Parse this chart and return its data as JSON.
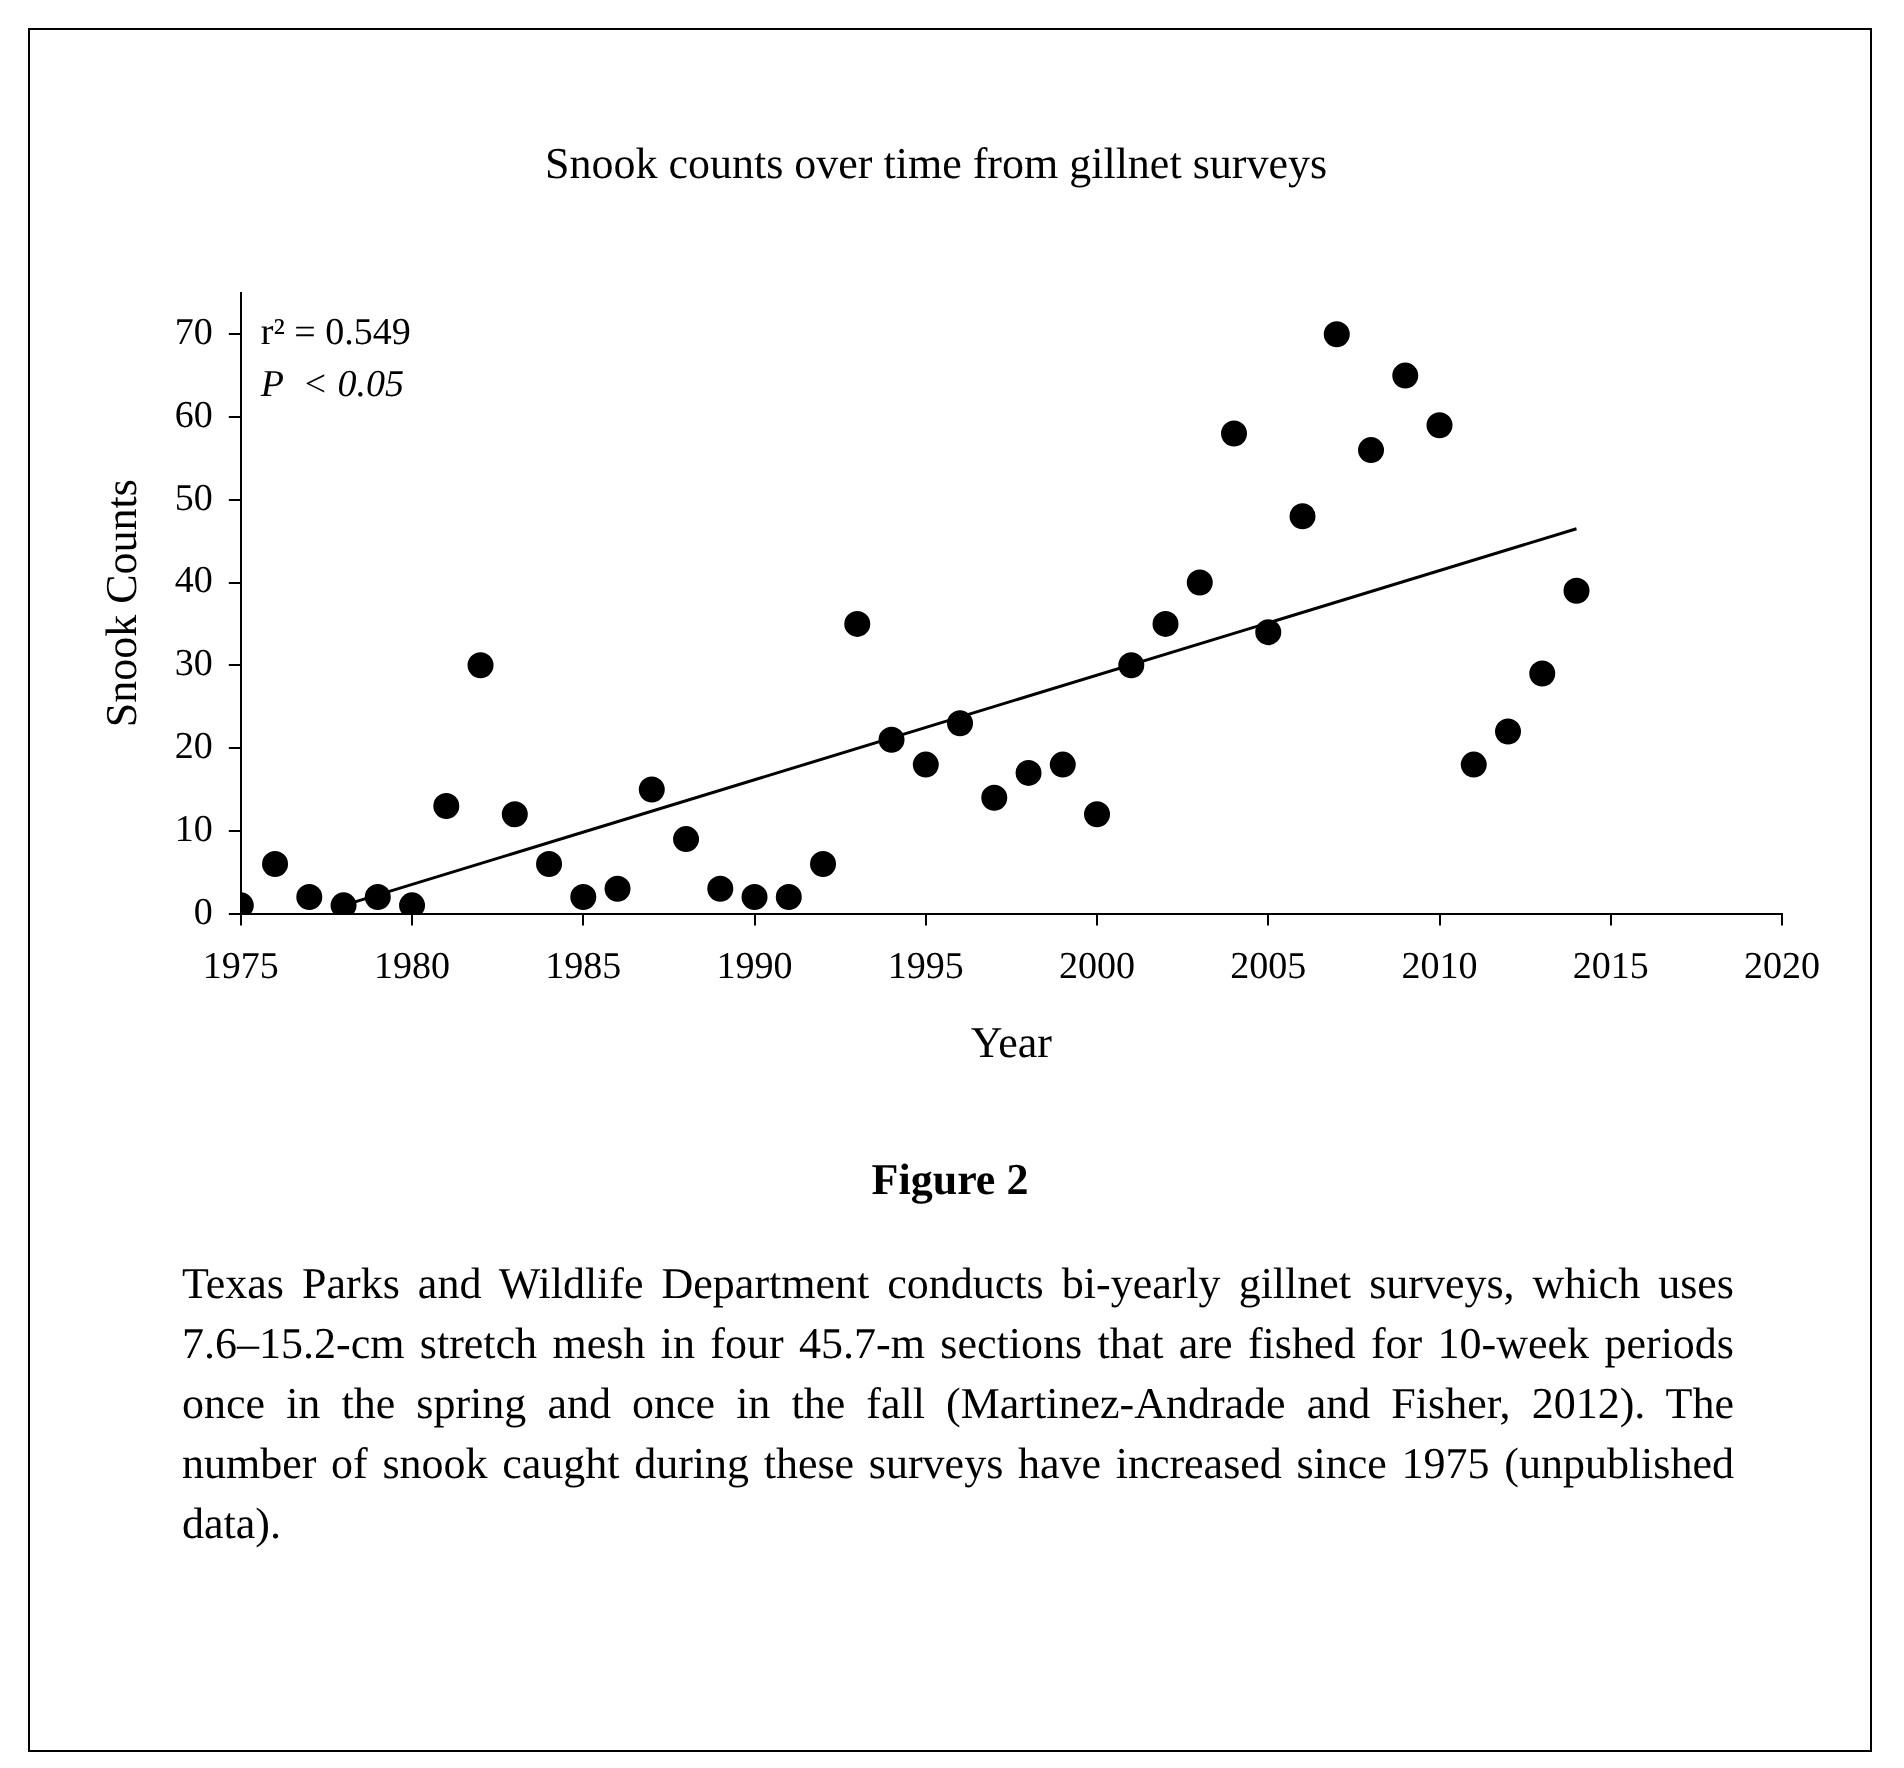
{
  "chart_data": {
    "type": "scatter",
    "title": "Snook counts over time from gillnet surveys",
    "xlabel": "Year",
    "ylabel": "Snook Counts",
    "series": [
      {
        "color": "#000000",
        "x": [
          1975,
          1976,
          1977,
          1978,
          1979,
          1980,
          1981,
          1982,
          1983,
          1984,
          1985,
          1986,
          1987,
          1988,
          1989,
          1990,
          1991,
          1992,
          1993,
          1994,
          1995,
          1996,
          1997,
          1998,
          1999,
          2000,
          2001,
          2002,
          2003,
          2004,
          2005,
          2006,
          2007,
          2008,
          2009,
          2010,
          2011,
          2012,
          2013,
          2014
        ],
        "values": [
          1,
          6,
          2,
          1,
          2,
          1,
          13,
          30,
          12,
          6,
          2,
          3,
          15,
          9,
          3,
          2,
          2,
          6,
          35,
          21,
          18,
          23,
          14,
          17,
          18,
          12,
          30,
          35,
          40,
          58,
          34,
          48,
          70,
          56,
          65,
          59,
          18,
          22,
          29,
          39
        ]
      },
      {
        "type": "line",
        "color": "#000000",
        "marker": "none",
        "line_style": "solid",
        "x": [
          1978,
          2014
        ],
        "values": [
          1,
          46.5
        ]
      }
    ],
    "xlim": [
      1975,
      2020
    ],
    "xticks": [
      1975,
      1980,
      1985,
      1990,
      1995,
      2000,
      2005,
      2010,
      2015,
      2020
    ],
    "ylim": [
      0,
      75
    ],
    "yticks": [
      0,
      10,
      20,
      30,
      40,
      50,
      60,
      70
    ],
    "grid": false,
    "legend": false,
    "marker": "circle",
    "annotations": [
      "r² = 0.549",
      "P  < 0.05",
      "Figure 2",
      "Texas Parks and Wildlife Department conducts bi-yearly gillnet surveys, which uses 7.6–15.2-cm stretch mesh in four 45.7-m sections that are fished for 10-week periods once in the spring and once in the fall (Martinez-Andrade and Fisher, 2012). The number of snook caught during these surveys have increased since 1975 (unpublished data)."
    ]
  }
}
